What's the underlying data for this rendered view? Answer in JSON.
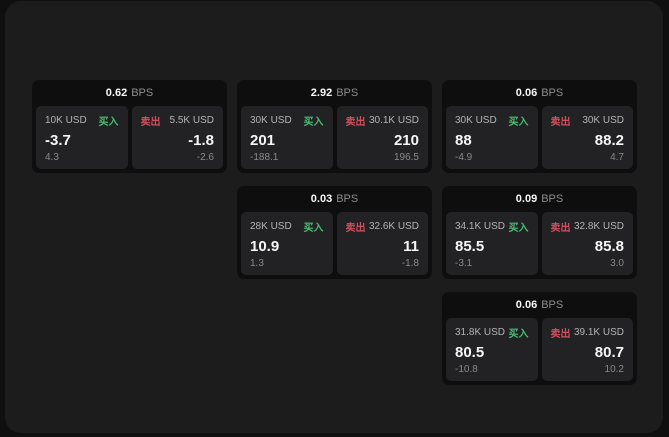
{
  "bps_unit": "BPS",
  "labels": {
    "buy": "买入",
    "sell": "卖出"
  },
  "colors": {
    "window_bg": "#1c1c1d",
    "card_bg": "#0e0e0f",
    "panel_bg": "#222224",
    "buy_green": "#4abd74",
    "sell_red": "#d04f5f",
    "value_text": "#f6f6f6",
    "muted_text": "#8a8a8a"
  },
  "cards": [
    {
      "bps": "0.62",
      "buy": {
        "amount": "10K USD",
        "value": "-3.7",
        "sub": "4.3"
      },
      "sell": {
        "amount": "5.5K USD",
        "value": "-1.8",
        "sub": "-2.6"
      }
    },
    {
      "bps": "2.92",
      "buy": {
        "amount": "30K USD",
        "value": "201",
        "sub": "-188.1"
      },
      "sell": {
        "amount": "30.1K USD",
        "value": "210",
        "sub": "196.5"
      }
    },
    {
      "bps": "0.06",
      "buy": {
        "amount": "30K USD",
        "value": "88",
        "sub": "-4.9"
      },
      "sell": {
        "amount": "30K USD",
        "value": "88.2",
        "sub": "4.7"
      }
    },
    {
      "bps": "0.03",
      "buy": {
        "amount": "28K USD",
        "value": "10.9",
        "sub": "1.3"
      },
      "sell": {
        "amount": "32.6K USD",
        "value": "11",
        "sub": "-1.8"
      }
    },
    {
      "bps": "0.09",
      "buy": {
        "amount": "34.1K USD",
        "value": "85.5",
        "sub": "-3.1"
      },
      "sell": {
        "amount": "32.8K USD",
        "value": "85.8",
        "sub": "3.0"
      }
    },
    {
      "bps": "0.06",
      "buy": {
        "amount": "31.8K USD",
        "value": "80.5",
        "sub": "-10.8"
      },
      "sell": {
        "amount": "39.1K USD",
        "value": "80.7",
        "sub": "10.2"
      }
    }
  ]
}
